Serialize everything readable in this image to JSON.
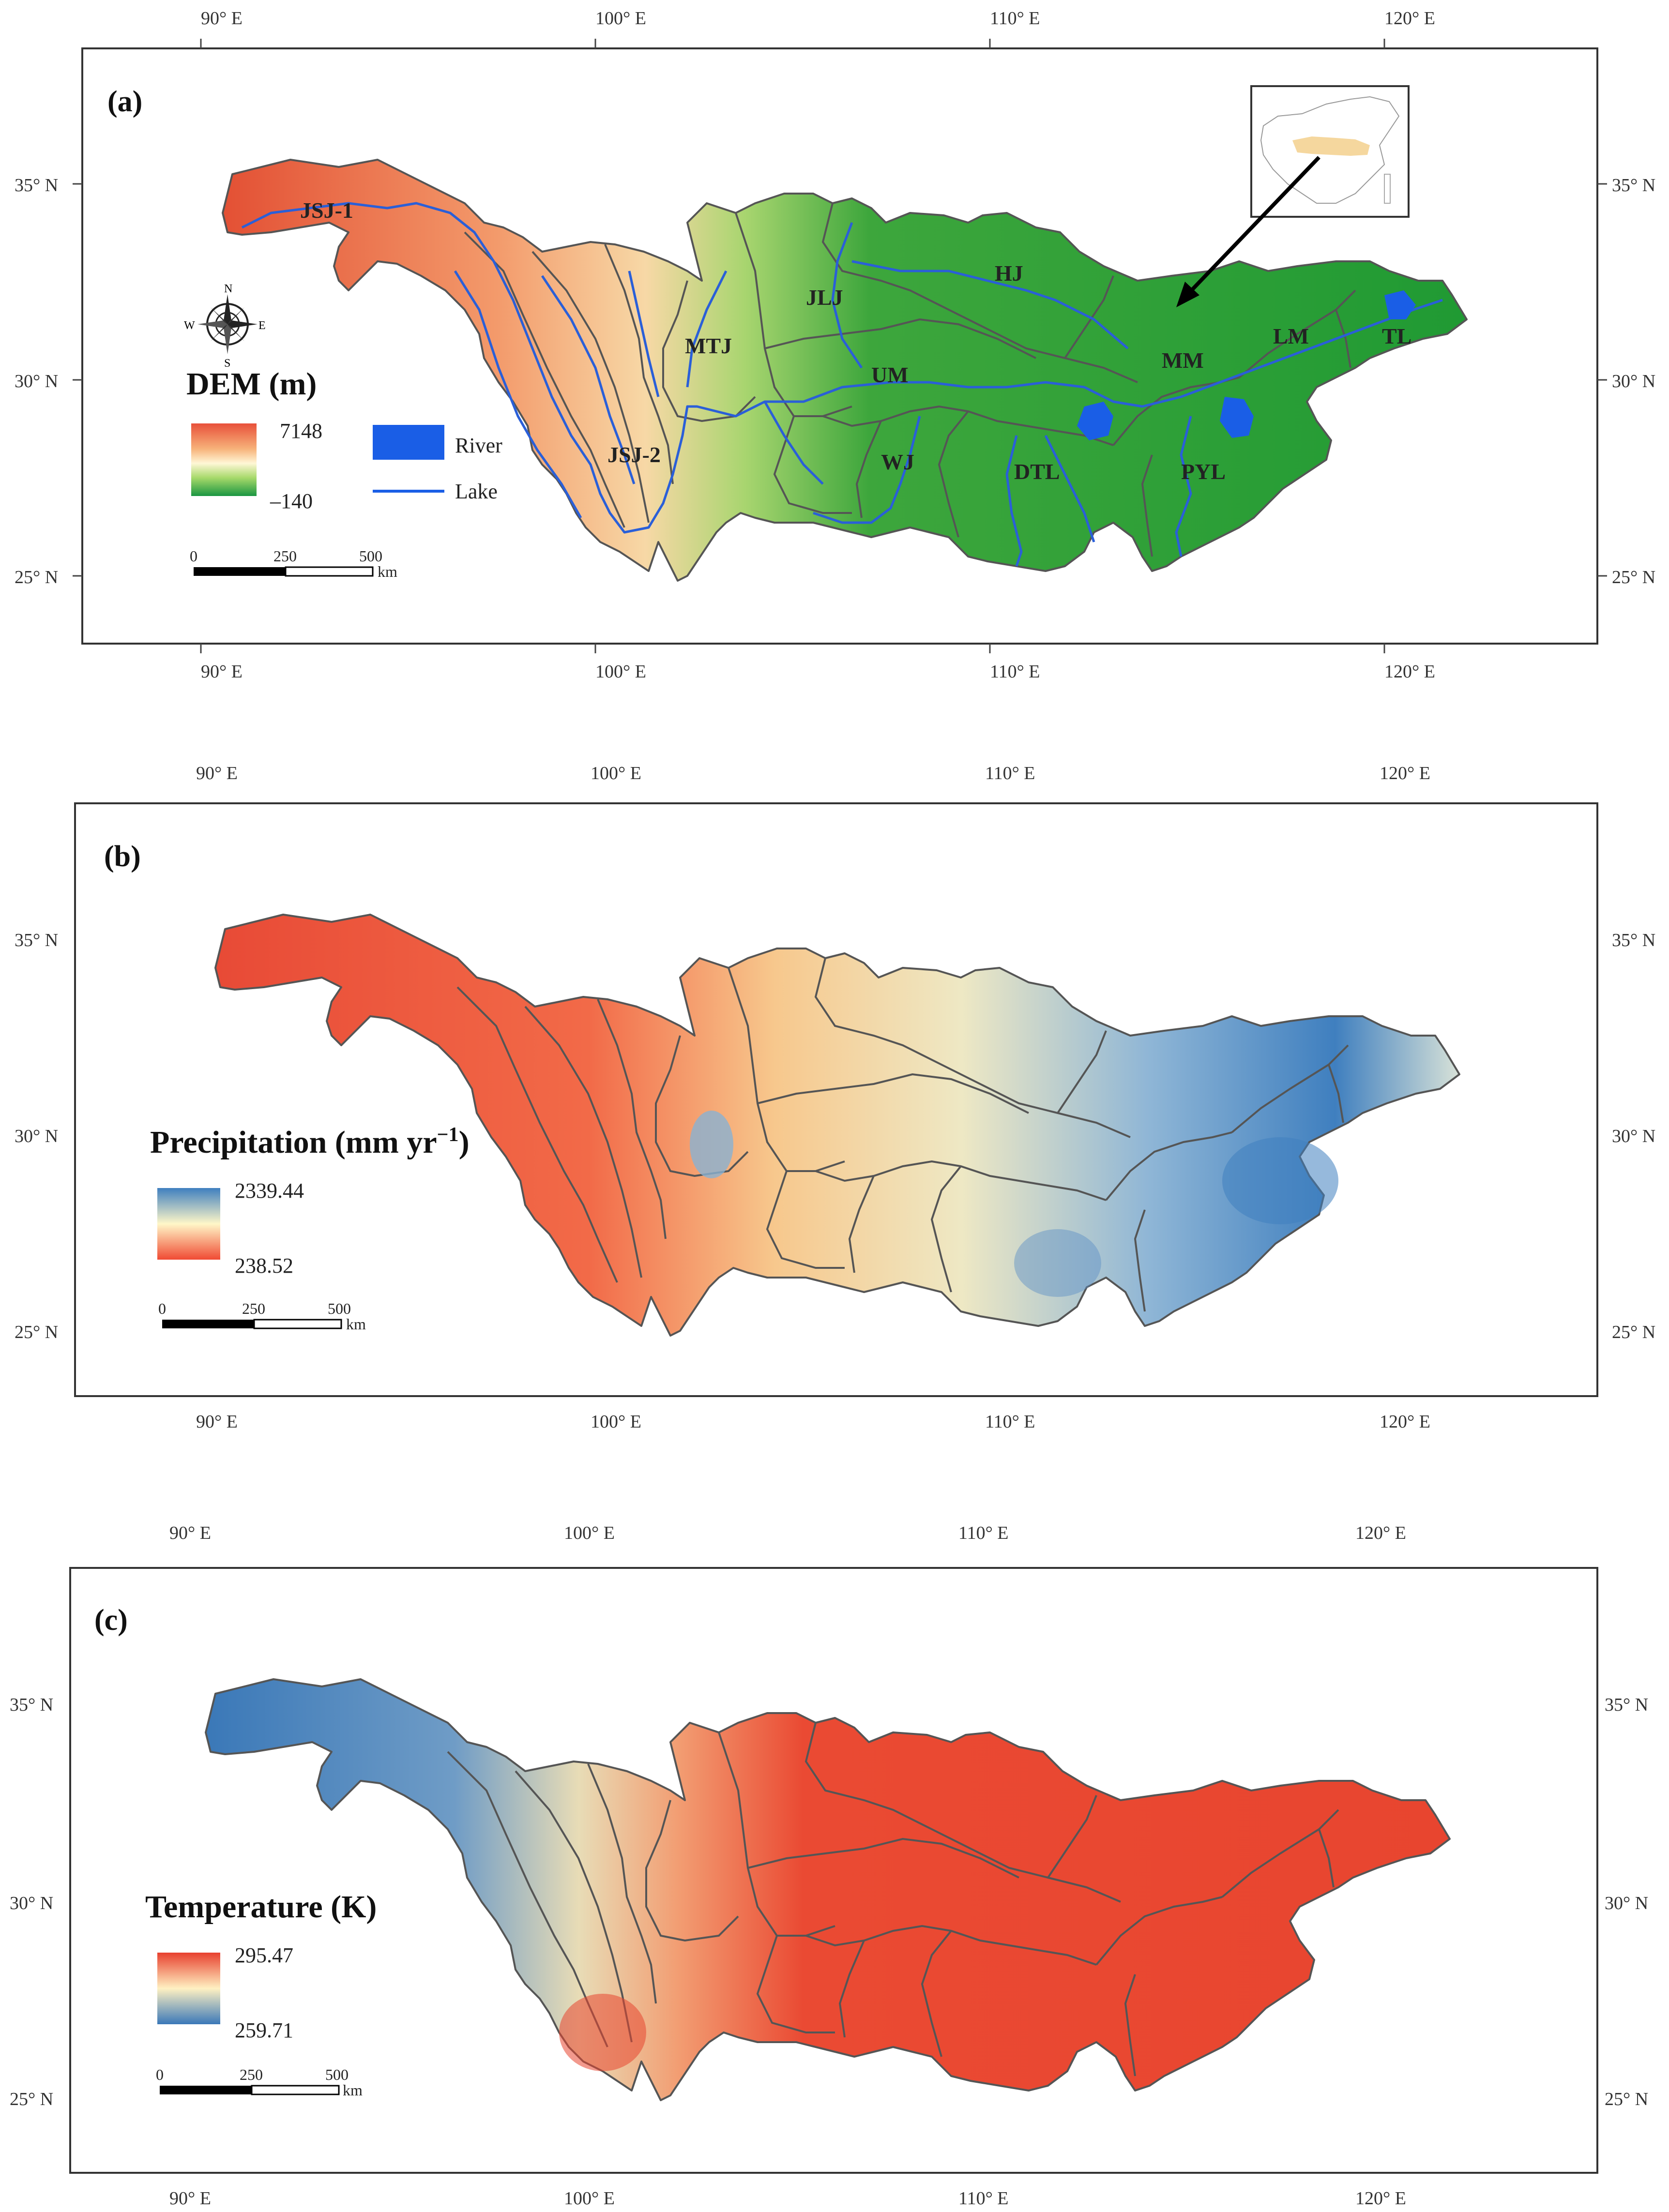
{
  "axes": {
    "lon_labels": [
      "90° E",
      "100° E",
      "110° E",
      "120° E"
    ],
    "lat_labels": [
      "35° N",
      "30° N",
      "25° N"
    ]
  },
  "panels": [
    {
      "id": "a",
      "label": "(a)",
      "legend_title": "DEM (m)",
      "legend_max": "7148",
      "legend_min": "–140",
      "colors": [
        "#e8503a",
        "#f7b27a",
        "#fff7d6",
        "#a6d96a",
        "#1a9641"
      ],
      "river_legend": "River",
      "lake_legend": "Lake",
      "compass": [
        "N",
        "E",
        "S",
        "W"
      ],
      "subbasins": [
        "JSJ-1",
        "JSJ-2",
        "MTJ",
        "JLJ",
        "HJ",
        "UM",
        "WJ",
        "DTL",
        "MM",
        "PYL",
        "LM",
        "TL"
      ]
    },
    {
      "id": "b",
      "label": "(b)",
      "legend_title_main": "Precipitation (mm yr",
      "legend_title_sup": "−1",
      "legend_title_end": ")",
      "legend_max": "2339.44",
      "legend_min": "238.52",
      "colors": [
        "#3f7fbf",
        "#fff7c8",
        "#f04a33"
      ]
    },
    {
      "id": "c",
      "label": "(c)",
      "legend_title": "Temperature (K)",
      "legend_max": "295.47",
      "legend_min": "259.71",
      "colors": [
        "#e8402e",
        "#fff1c2",
        "#3a78b8"
      ]
    }
  ],
  "scalebar": {
    "ticks": [
      "0",
      "250",
      "500"
    ],
    "unit": "km"
  }
}
